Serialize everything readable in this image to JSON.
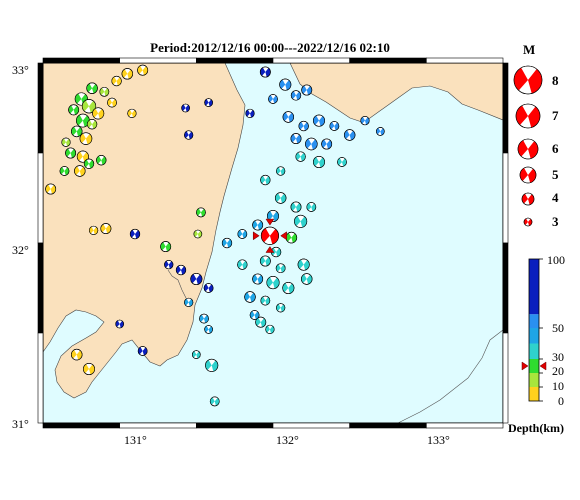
{
  "title": "Period:2012/12/16 00:00---2022/12/16 02:10",
  "map": {
    "lon_range": [
      130.4,
      133.4
    ],
    "lat_range": [
      31.0,
      33.0
    ],
    "lon_ticks": [
      "131°",
      "132°",
      "133°"
    ],
    "lat_ticks": [
      "33°",
      "32°",
      "31°"
    ],
    "sea_color": "#dffcff",
    "land_color": "#fae1bd"
  },
  "mainshock": {
    "lon": 131.88,
    "lat": 32.04,
    "depth_km": 25,
    "magnitude": 6.6,
    "color": "#ff0000"
  },
  "magnitude_legend": {
    "header": "M",
    "items": [
      "8",
      "7",
      "6",
      "5",
      "4",
      "3"
    ]
  },
  "depth_scale": {
    "title": "Depth(km)",
    "labels": [
      "100",
      "50",
      "30",
      "20",
      "10",
      "0"
    ],
    "bands": [
      {
        "from": 0,
        "to": 10,
        "color": "#ffd21e"
      },
      {
        "from": 10,
        "to": 20,
        "color": "#a8e63c"
      },
      {
        "from": 20,
        "to": 30,
        "color": "#2fdc2f"
      },
      {
        "from": 30,
        "to": 40,
        "color": "#2fd2cd"
      },
      {
        "from": 40,
        "to": 50,
        "color": "#1fa5e6"
      },
      {
        "from": 50,
        "to": 60,
        "color": "#2a90f0"
      },
      {
        "from": 60,
        "to": 100,
        "color": "#0a1fbe"
      }
    ],
    "marker_depth": 25
  },
  "events": [
    {
      "lon": 130.72,
      "lat": 32.86,
      "m": 3.5,
      "c": "#2fdc2f"
    },
    {
      "lon": 130.8,
      "lat": 32.84,
      "m": 3.2,
      "c": "#a8e63c"
    },
    {
      "lon": 130.65,
      "lat": 32.8,
      "m": 3.8,
      "c": "#2fdc2f"
    },
    {
      "lon": 130.7,
      "lat": 32.76,
      "m": 4.0,
      "c": "#a8e63c"
    },
    {
      "lon": 130.6,
      "lat": 32.74,
      "m": 3.4,
      "c": "#2fdc2f"
    },
    {
      "lon": 130.76,
      "lat": 32.72,
      "m": 3.6,
      "c": "#ffd21e"
    },
    {
      "lon": 130.66,
      "lat": 32.68,
      "m": 3.9,
      "c": "#2fdc2f"
    },
    {
      "lon": 130.72,
      "lat": 32.66,
      "m": 3.3,
      "c": "#a8e63c"
    },
    {
      "lon": 130.62,
      "lat": 32.62,
      "m": 3.5,
      "c": "#2fdc2f"
    },
    {
      "lon": 130.55,
      "lat": 32.56,
      "m": 3.1,
      "c": "#a8e63c"
    },
    {
      "lon": 130.68,
      "lat": 32.58,
      "m": 3.7,
      "c": "#ffd21e"
    },
    {
      "lon": 130.58,
      "lat": 32.5,
      "m": 3.4,
      "c": "#2fdc2f"
    },
    {
      "lon": 130.66,
      "lat": 32.48,
      "m": 3.6,
      "c": "#ffd21e"
    },
    {
      "lon": 130.54,
      "lat": 32.4,
      "m": 3.2,
      "c": "#2fdc2f"
    },
    {
      "lon": 130.7,
      "lat": 32.44,
      "m": 3.3,
      "c": "#2fdc2f"
    },
    {
      "lon": 130.64,
      "lat": 32.4,
      "m": 3.5,
      "c": "#ffd21e"
    },
    {
      "lon": 130.45,
      "lat": 32.3,
      "m": 3.4,
      "c": "#ffd21e"
    },
    {
      "lon": 130.88,
      "lat": 32.9,
      "m": 3.3,
      "c": "#ffd21e"
    },
    {
      "lon": 130.95,
      "lat": 32.94,
      "m": 3.5,
      "c": "#ffd21e"
    },
    {
      "lon": 131.05,
      "lat": 32.96,
      "m": 3.4,
      "c": "#ffd21e"
    },
    {
      "lon": 130.85,
      "lat": 32.78,
      "m": 3.2,
      "c": "#ffd21e"
    },
    {
      "lon": 130.98,
      "lat": 32.72,
      "m": 3.1,
      "c": "#ffd21e"
    },
    {
      "lon": 130.78,
      "lat": 32.46,
      "m": 3.3,
      "c": "#2fdc2f"
    },
    {
      "lon": 130.73,
      "lat": 32.07,
      "m": 3.1,
      "c": "#ffd21e"
    },
    {
      "lon": 130.81,
      "lat": 32.08,
      "m": 3.4,
      "c": "#ffd21e"
    },
    {
      "lon": 131.0,
      "lat": 32.05,
      "m": 3.3,
      "c": "#0a1fbe"
    },
    {
      "lon": 131.2,
      "lat": 31.98,
      "m": 3.4,
      "c": "#2fdc2f"
    },
    {
      "lon": 131.43,
      "lat": 32.17,
      "m": 3.2,
      "c": "#2fdc2f"
    },
    {
      "lon": 131.41,
      "lat": 32.05,
      "m": 3.0,
      "c": "#a8e63c"
    },
    {
      "lon": 131.22,
      "lat": 31.88,
      "m": 3.1,
      "c": "#0a1fbe"
    },
    {
      "lon": 131.3,
      "lat": 31.85,
      "m": 3.3,
      "c": "#0a1fbe"
    },
    {
      "lon": 131.4,
      "lat": 31.8,
      "m": 3.6,
      "c": "#0a1fbe"
    },
    {
      "lon": 131.35,
      "lat": 31.67,
      "m": 3.1,
      "c": "#1fa5e6"
    },
    {
      "lon": 131.48,
      "lat": 31.75,
      "m": 3.2,
      "c": "#0a1fbe"
    },
    {
      "lon": 131.45,
      "lat": 31.58,
      "m": 3.2,
      "c": "#1fa5e6"
    },
    {
      "lon": 131.48,
      "lat": 31.52,
      "m": 3.0,
      "c": "#1fa5e6"
    },
    {
      "lon": 130.9,
      "lat": 31.55,
      "m": 3.0,
      "c": "#0a1fbe"
    },
    {
      "lon": 131.05,
      "lat": 31.4,
      "m": 3.2,
      "c": "#0a1fbe"
    },
    {
      "lon": 130.62,
      "lat": 31.38,
      "m": 3.5,
      "c": "#ffd21e"
    },
    {
      "lon": 130.7,
      "lat": 31.3,
      "m": 3.6,
      "c": "#ffd21e"
    },
    {
      "lon": 131.5,
      "lat": 31.32,
      "m": 3.8,
      "c": "#2fd2cd"
    },
    {
      "lon": 131.4,
      "lat": 31.38,
      "m": 3.0,
      "c": "#2fd2cd"
    },
    {
      "lon": 131.52,
      "lat": 31.12,
      "m": 3.2,
      "c": "#2fd2cd"
    },
    {
      "lon": 131.35,
      "lat": 32.6,
      "m": 3.1,
      "c": "#0a1fbe"
    },
    {
      "lon": 131.33,
      "lat": 32.75,
      "m": 3.0,
      "c": "#0a1fbe"
    },
    {
      "lon": 131.48,
      "lat": 32.78,
      "m": 3.0,
      "c": "#0a1fbe"
    },
    {
      "lon": 131.75,
      "lat": 32.72,
      "m": 3.1,
      "c": "#0a1fbe"
    },
    {
      "lon": 131.85,
      "lat": 32.95,
      "m": 3.4,
      "c": "#0a1fbe"
    },
    {
      "lon": 131.9,
      "lat": 32.8,
      "m": 3.2,
      "c": "#2a90f0"
    },
    {
      "lon": 131.98,
      "lat": 32.88,
      "m": 3.6,
      "c": "#2a90f0"
    },
    {
      "lon": 132.05,
      "lat": 32.82,
      "m": 3.3,
      "c": "#2a90f0"
    },
    {
      "lon": 132.12,
      "lat": 32.85,
      "m": 3.4,
      "c": "#2a90f0"
    },
    {
      "lon": 132.0,
      "lat": 32.7,
      "m": 3.5,
      "c": "#2a90f0"
    },
    {
      "lon": 132.1,
      "lat": 32.65,
      "m": 3.3,
      "c": "#2a90f0"
    },
    {
      "lon": 132.2,
      "lat": 32.68,
      "m": 3.6,
      "c": "#2a90f0"
    },
    {
      "lon": 132.3,
      "lat": 32.65,
      "m": 3.2,
      "c": "#2a90f0"
    },
    {
      "lon": 132.4,
      "lat": 32.6,
      "m": 3.5,
      "c": "#2a90f0"
    },
    {
      "lon": 132.5,
      "lat": 32.68,
      "m": 3.1,
      "c": "#2a90f0"
    },
    {
      "lon": 132.6,
      "lat": 32.62,
      "m": 3.0,
      "c": "#2a90f0"
    },
    {
      "lon": 132.05,
      "lat": 32.58,
      "m": 3.4,
      "c": "#2a90f0"
    },
    {
      "lon": 132.15,
      "lat": 32.55,
      "m": 3.7,
      "c": "#2a90f0"
    },
    {
      "lon": 132.25,
      "lat": 32.55,
      "m": 3.4,
      "c": "#2a90f0"
    },
    {
      "lon": 132.08,
      "lat": 32.48,
      "m": 3.3,
      "c": "#2fd2cd"
    },
    {
      "lon": 132.2,
      "lat": 32.45,
      "m": 3.6,
      "c": "#2fd2cd"
    },
    {
      "lon": 132.35,
      "lat": 32.45,
      "m": 3.2,
      "c": "#2fd2cd"
    },
    {
      "lon": 131.95,
      "lat": 32.4,
      "m": 3.1,
      "c": "#2fd2cd"
    },
    {
      "lon": 131.85,
      "lat": 32.35,
      "m": 3.3,
      "c": "#2fd2cd"
    },
    {
      "lon": 131.95,
      "lat": 32.25,
      "m": 3.5,
      "c": "#2fd2cd"
    },
    {
      "lon": 132.05,
      "lat": 32.2,
      "m": 3.4,
      "c": "#2fd2cd"
    },
    {
      "lon": 132.15,
      "lat": 32.2,
      "m": 3.2,
      "c": "#2fd2cd"
    },
    {
      "lon": 132.08,
      "lat": 32.12,
      "m": 3.8,
      "c": "#2fd2cd"
    },
    {
      "lon": 131.9,
      "lat": 32.15,
      "m": 3.6,
      "c": "#1fa5e6"
    },
    {
      "lon": 131.8,
      "lat": 32.1,
      "m": 3.4,
      "c": "#1fa5e6"
    },
    {
      "lon": 131.7,
      "lat": 32.05,
      "m": 3.2,
      "c": "#1fa5e6"
    },
    {
      "lon": 131.6,
      "lat": 32.0,
      "m": 3.3,
      "c": "#1fa5e6"
    },
    {
      "lon": 132.02,
      "lat": 32.03,
      "m": 3.5,
      "c": "#2fdc2f"
    },
    {
      "lon": 131.92,
      "lat": 31.95,
      "m": 3.3,
      "c": "#2fd2cd"
    },
    {
      "lon": 131.85,
      "lat": 31.9,
      "m": 3.4,
      "c": "#2fd2cd"
    },
    {
      "lon": 131.95,
      "lat": 31.86,
      "m": 3.2,
      "c": "#2fd2cd"
    },
    {
      "lon": 132.1,
      "lat": 31.88,
      "m": 3.6,
      "c": "#2fd2cd"
    },
    {
      "lon": 132.12,
      "lat": 31.8,
      "m": 3.5,
      "c": "#2fd2cd"
    },
    {
      "lon": 131.7,
      "lat": 31.88,
      "m": 3.3,
      "c": "#2fd2cd"
    },
    {
      "lon": 131.8,
      "lat": 31.8,
      "m": 3.4,
      "c": "#1fa5e6"
    },
    {
      "lon": 131.9,
      "lat": 31.78,
      "m": 3.8,
      "c": "#2fd2cd"
    },
    {
      "lon": 132.0,
      "lat": 31.75,
      "m": 3.6,
      "c": "#2fd2cd"
    },
    {
      "lon": 131.75,
      "lat": 31.7,
      "m": 3.5,
      "c": "#1fa5e6"
    },
    {
      "lon": 131.85,
      "lat": 31.68,
      "m": 3.2,
      "c": "#2fd2cd"
    },
    {
      "lon": 131.95,
      "lat": 31.64,
      "m": 3.1,
      "c": "#2fd2cd"
    },
    {
      "lon": 131.82,
      "lat": 31.56,
      "m": 3.4,
      "c": "#2fd2cd"
    },
    {
      "lon": 131.88,
      "lat": 31.52,
      "m": 3.1,
      "c": "#2fd2cd"
    },
    {
      "lon": 131.78,
      "lat": 31.6,
      "m": 3.2,
      "c": "#1fa5e6"
    }
  ]
}
